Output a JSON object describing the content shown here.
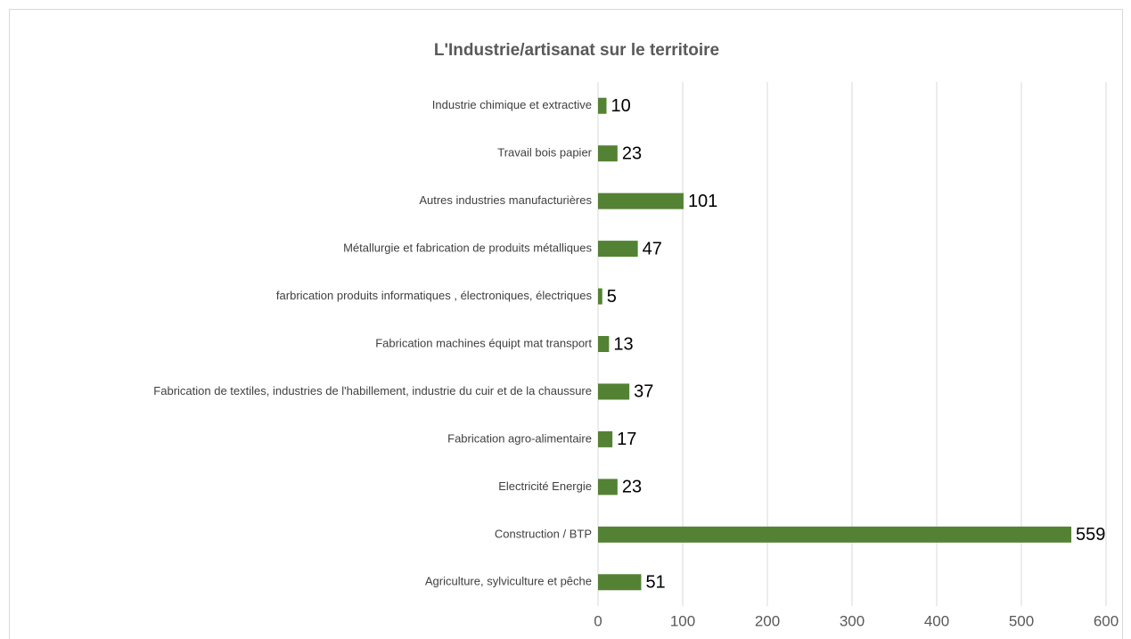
{
  "chart_data": {
    "type": "bar",
    "orientation": "horizontal",
    "title": "L'Industrie/artisanat sur le territoire",
    "categories": [
      "Industrie chimique et extractive",
      "Travail bois papier",
      "Autres industries manufacturières",
      "Métallurgie et fabrication de produits métalliques",
      "farbrication produits informatiques , électroniques, électriques",
      "Fabrication machines équipt mat transport",
      "Fabrication de textiles, industries de l'habillement, industrie du cuir et de la chaussure",
      "Fabrication agro-alimentaire",
      "Electricité Energie",
      "Construction / BTP",
      "Agriculture, sylviculture et pêche"
    ],
    "values": [
      10,
      23,
      101,
      47,
      5,
      13,
      37,
      17,
      23,
      559,
      51
    ],
    "color": "#548235",
    "xlim": [
      0,
      600
    ],
    "xticks": [
      0,
      100,
      200,
      300,
      400,
      500,
      600
    ],
    "grid": true
  }
}
